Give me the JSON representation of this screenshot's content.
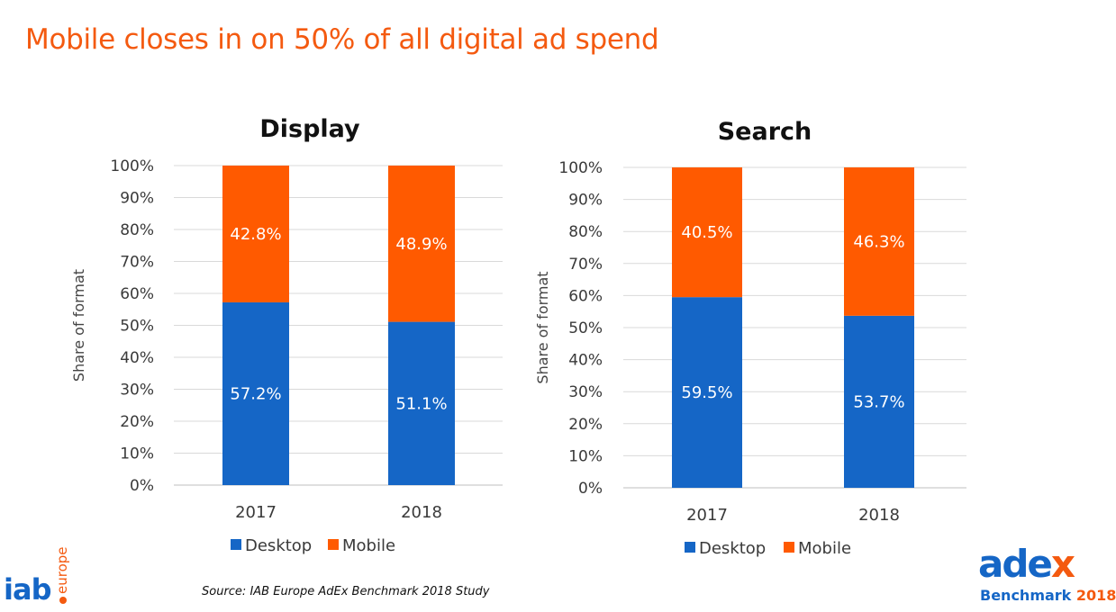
{
  "title": "Mobile closes in on 50% of all digital ad spend",
  "chart_data": [
    {
      "type": "bar",
      "stacked": true,
      "title": "Display",
      "categories": [
        "2017",
        "2018"
      ],
      "series": [
        {
          "name": "Desktop",
          "values": [
            57.2,
            51.1
          ],
          "labels": [
            "57.2%",
            "51.1%"
          ],
          "color": "#1566c6"
        },
        {
          "name": "Mobile",
          "values": [
            42.8,
            48.9
          ],
          "labels": [
            "42.8%",
            "48.9%"
          ],
          "color": "#ff5a00"
        }
      ],
      "ylabel": "Share of format",
      "ylim": [
        0,
        100
      ],
      "yticks": [
        "0%",
        "10%",
        "20%",
        "30%",
        "40%",
        "50%",
        "60%",
        "70%",
        "80%",
        "90%",
        "100%"
      ],
      "grid": true,
      "legend": "bottom"
    },
    {
      "type": "bar",
      "stacked": true,
      "title": "Search",
      "categories": [
        "2017",
        "2018"
      ],
      "series": [
        {
          "name": "Desktop",
          "values": [
            59.5,
            53.7
          ],
          "labels": [
            "59.5%",
            "53.7%"
          ],
          "color": "#1566c6"
        },
        {
          "name": "Mobile",
          "values": [
            40.5,
            46.3
          ],
          "labels": [
            "40.5%",
            "46.3%"
          ],
          "color": "#ff5a00"
        }
      ],
      "ylabel": "Share of format",
      "ylim": [
        0,
        100
      ],
      "yticks": [
        "0%",
        "10%",
        "20%",
        "30%",
        "40%",
        "50%",
        "60%",
        "70%",
        "80%",
        "90%",
        "100%"
      ],
      "grid": true,
      "legend": "bottom"
    }
  ],
  "source": "Source: IAB Europe AdEx Benchmark 2018 Study",
  "logos": {
    "iab": {
      "word": "iab",
      "sub": "europe"
    },
    "adex": {
      "a": "a",
      "d": "d",
      "e": "e",
      "x": "x",
      "sub": "Benchmark ",
      "year": "2018"
    }
  }
}
